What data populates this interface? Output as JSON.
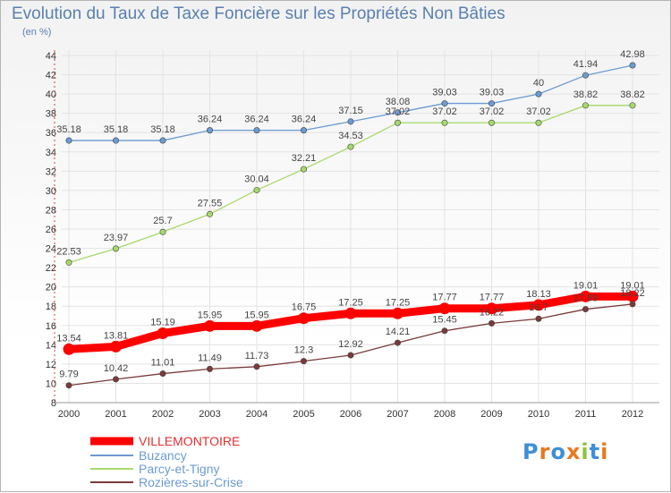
{
  "title": "Evolution du Taux de Taxe Foncière sur les Propriétés Non Bâties",
  "unit_label": "(en %)",
  "logo": {
    "letters": [
      "P",
      "r",
      "o",
      "x",
      "i",
      "t",
      "i"
    ],
    "colors": [
      "#3f8fd8",
      "#e8791f",
      "#3f8fd8",
      "#e8791f",
      "#8bc53f",
      "#3f8fd8",
      "#e8791f"
    ]
  },
  "chart_data": {
    "type": "line",
    "x": [
      "2000",
      "2001",
      "2002",
      "2003",
      "2004",
      "2005",
      "2006",
      "2007",
      "2008",
      "2009",
      "2010",
      "2011",
      "2012"
    ],
    "ylim": [
      8,
      44
    ],
    "yticks": [
      8,
      10,
      12,
      14,
      16,
      18,
      20,
      22,
      24,
      26,
      28,
      30,
      32,
      34,
      36,
      38,
      40,
      42,
      44
    ],
    "grid": true,
    "legend_position": "bottom-left",
    "series": [
      {
        "name": "VILLEMONTOIRE",
        "color": "#ff0000",
        "bold": true,
        "values": [
          13.54,
          13.81,
          15.19,
          15.95,
          15.95,
          16.75,
          17.25,
          17.25,
          17.77,
          17.77,
          18.13,
          19.01,
          19.01
        ],
        "labels": [
          "13.54",
          "13.81",
          "15.19",
          "15.95",
          "15.95",
          "16.75",
          "17.25",
          "17.25",
          "17.77",
          "17.77",
          "18.13",
          "19.01",
          "19.01"
        ]
      },
      {
        "name": "Buzancy",
        "color": "#6b9bd2",
        "bold": false,
        "values": [
          35.18,
          35.18,
          35.18,
          36.24,
          36.24,
          36.24,
          37.15,
          38.08,
          39.03,
          39.03,
          40,
          41.94,
          42.98
        ],
        "labels": [
          "35.18",
          "35.18",
          "35.18",
          "36.24",
          "36.24",
          "36.24",
          "37.15",
          "38.08",
          "39.03",
          "39.03",
          "40",
          "41.94",
          "42.98"
        ]
      },
      {
        "name": "Parcy-et-Tigny",
        "color": "#a6d96a",
        "bold": false,
        "values": [
          22.53,
          23.97,
          25.7,
          27.55,
          30.04,
          32.21,
          34.53,
          37.02,
          37.02,
          37.02,
          37.02,
          38.82,
          38.82
        ],
        "labels": [
          "22.53",
          "23.97",
          "25.7",
          "27.55",
          "30.04",
          "32.21",
          "34.53",
          "37.02",
          "37.02",
          "37.02",
          "37.02",
          "38.82",
          "38.82"
        ]
      },
      {
        "name": "Rozières-sur-Crise",
        "color": "#7a3a3a",
        "bold": false,
        "values": [
          9.79,
          10.42,
          11.01,
          11.49,
          11.73,
          12.3,
          12.92,
          14.21,
          15.45,
          16.22,
          16.7,
          17.69,
          18.22
        ],
        "labels": [
          "9.79",
          "10.42",
          "11.01",
          "11.49",
          "11.73",
          "12.3",
          "12.92",
          "14.21",
          "15.45",
          "16.22",
          "16.7",
          "17.69",
          "18.22"
        ]
      }
    ]
  }
}
